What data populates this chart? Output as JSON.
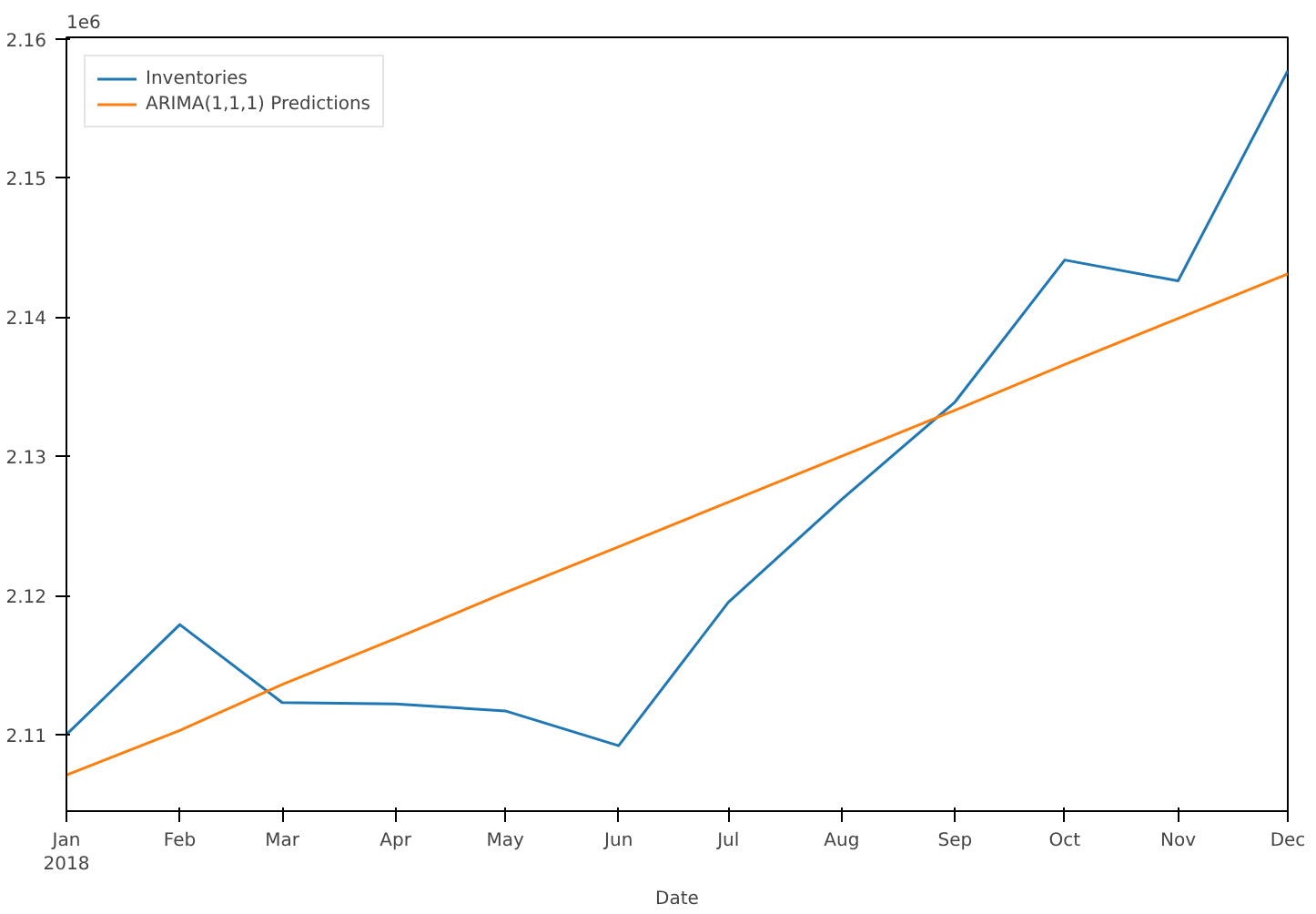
{
  "chart_data": {
    "type": "line",
    "xlabel": "Date",
    "annotations": [
      "1e6"
    ],
    "x": [
      "2018-01",
      "2018-02",
      "2018-03",
      "2018-04",
      "2018-05",
      "2018-06",
      "2018-07",
      "2018-08",
      "2018-09",
      "2018-10",
      "2018-11",
      "2018-12"
    ],
    "series": [
      {
        "name": "Inventories",
        "color": "#1f77b4",
        "values": [
          2.11,
          2.1179,
          2.1123,
          2.1122,
          2.1117,
          2.1092,
          2.1195,
          2.1269,
          2.1339,
          2.1441,
          2.1426,
          2.1577
        ]
      },
      {
        "name": "ARIMA(1,1,1) Predictions",
        "color": "#ff7f0e",
        "values": [
          2.1071,
          2.1103,
          2.1136,
          2.1169,
          2.1202,
          2.1235,
          2.1267,
          2.13,
          2.1333,
          2.1366,
          2.1399,
          2.1431
        ]
      }
    ],
    "xlim": [
      "2018-01",
      "2018-12"
    ],
    "xticks": [
      {
        "value": "2018-01",
        "label": "Jan\n2018"
      },
      {
        "value": "2018-02",
        "label": "Feb"
      },
      {
        "value": "2018-03",
        "label": "Mar"
      },
      {
        "value": "2018-04",
        "label": "Apr"
      },
      {
        "value": "2018-05",
        "label": "May"
      },
      {
        "value": "2018-06",
        "label": "Jun"
      },
      {
        "value": "2018-07",
        "label": "Jul"
      },
      {
        "value": "2018-08",
        "label": "Aug"
      },
      {
        "value": "2018-09",
        "label": "Sep"
      },
      {
        "value": "2018-10",
        "label": "Oct"
      },
      {
        "value": "2018-11",
        "label": "Nov"
      },
      {
        "value": "2018-12",
        "label": "Dec"
      }
    ],
    "ylim": [
      2.1045,
      2.1601
    ],
    "yticks": [
      2.11,
      2.12,
      2.13,
      2.14,
      2.15,
      2.16
    ],
    "grid": false,
    "legend": "top left",
    "marker": "none",
    "line_style": "solid"
  }
}
